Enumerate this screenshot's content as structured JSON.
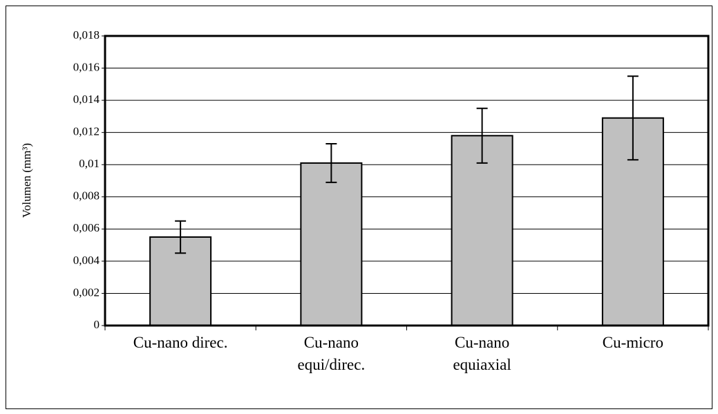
{
  "chart_data": {
    "type": "bar",
    "y_label": "Volumen (mm³)",
    "categories": [
      "Cu-nano direc.",
      "Cu-nano\nequi/direc.",
      "Cu-nano\nequiaxial",
      "Cu-micro"
    ],
    "values": [
      0.0055,
      0.0101,
      0.0118,
      0.0129
    ],
    "errors": [
      0.001,
      0.0012,
      0.0017,
      0.0026
    ],
    "color": "#c0c0c0",
    "ylim": [
      0,
      0.018
    ],
    "yticks": [
      0,
      {
        "value": 0.002,
        "label": "0,002"
      },
      {
        "value": 0.004,
        "label": "0,004"
      },
      {
        "value": 0.006,
        "label": "0,006"
      },
      {
        "value": 0.008,
        "label": "0,008"
      },
      {
        "value": 0.01,
        "label": "0,01"
      },
      {
        "value": 0.012,
        "label": "0,012"
      },
      {
        "value": 0.014,
        "label": "0,014"
      },
      {
        "value": 0.016,
        "label": "0,016"
      },
      {
        "value": 0.018,
        "label": "0,018"
      }
    ],
    "grid": true
  }
}
